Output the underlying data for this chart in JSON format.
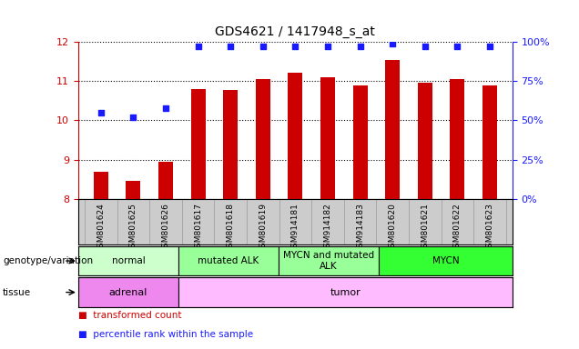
{
  "title": "GDS4621 / 1417948_s_at",
  "samples": [
    "GSM801624",
    "GSM801625",
    "GSM801626",
    "GSM801617",
    "GSM801618",
    "GSM801619",
    "GSM914181",
    "GSM914182",
    "GSM914183",
    "GSM801620",
    "GSM801621",
    "GSM801622",
    "GSM801623"
  ],
  "bar_values": [
    8.7,
    8.45,
    8.95,
    10.8,
    10.78,
    11.05,
    11.22,
    11.1,
    10.9,
    11.55,
    10.95,
    11.05,
    10.9
  ],
  "dot_values": [
    55,
    52,
    58,
    97,
    97,
    97,
    97,
    97,
    97,
    99,
    97,
    97,
    97
  ],
  "ylim": [
    8,
    12
  ],
  "yticks": [
    8,
    9,
    10,
    11,
    12
  ],
  "y2lim": [
    0,
    100
  ],
  "y2ticks": [
    0,
    25,
    50,
    75,
    100
  ],
  "y2ticklabels": [
    "0%",
    "25%",
    "50%",
    "75%",
    "100%"
  ],
  "bar_color": "#cc0000",
  "dot_color": "#1a1aff",
  "bar_width": 0.45,
  "genotype_groups": [
    {
      "label": "normal",
      "start": 0,
      "end": 3,
      "color": "#ccffcc"
    },
    {
      "label": "mutated ALK",
      "start": 3,
      "end": 6,
      "color": "#99ff99"
    },
    {
      "label": "MYCN and mutated\nALK",
      "start": 6,
      "end": 9,
      "color": "#99ff99"
    },
    {
      "label": "MYCN",
      "start": 9,
      "end": 13,
      "color": "#33ff33"
    }
  ],
  "tissue_groups": [
    {
      "label": "adrenal",
      "start": 0,
      "end": 3,
      "color": "#ee88ee"
    },
    {
      "label": "tumor",
      "start": 3,
      "end": 13,
      "color": "#ffbbff"
    }
  ],
  "genotype_label": "genotype/variation",
  "tissue_label": "tissue",
  "legend_bar": "transformed count",
  "legend_dot": "percentile rank within the sample",
  "tick_color_left": "#cc0000",
  "tick_color_right": "#1a1aff",
  "bg_color": "#ffffff",
  "xticklabels_bg": "#cccccc"
}
